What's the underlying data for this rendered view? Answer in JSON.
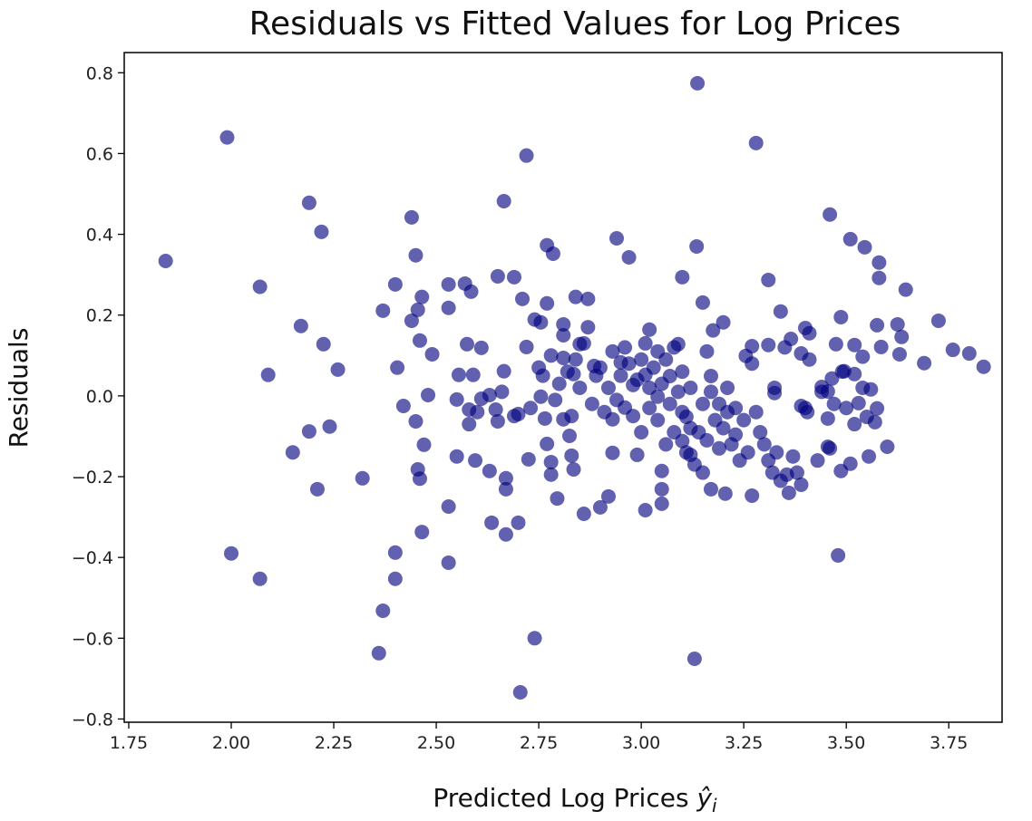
{
  "chart_data": {
    "type": "scatter",
    "title": "Residuals vs Fitted Values for Log Prices",
    "xlabel": "Predicted Log Prices",
    "xlabel_math": "ŷ",
    "xlabel_sub": "i",
    "ylabel": "Residuals",
    "xlim": [
      1.739,
      3.88
    ],
    "ylim": [
      -0.808,
      0.85
    ],
    "x_ticks": [
      1.75,
      2.0,
      2.25,
      2.5,
      2.75,
      3.0,
      3.25,
      3.5,
      3.75
    ],
    "x_tick_labels": [
      "1.75",
      "2.00",
      "2.25",
      "2.50",
      "2.75",
      "3.00",
      "3.25",
      "3.50",
      "3.75"
    ],
    "y_ticks": [
      -0.8,
      -0.6,
      -0.4,
      -0.2,
      0.0,
      0.2,
      0.4,
      0.6,
      0.8
    ],
    "y_tick_labels": [
      "−0.8",
      "−0.6",
      "−0.4",
      "−0.2",
      "0.0",
      "0.2",
      "0.4",
      "0.6",
      "0.8"
    ],
    "grid": false,
    "marker_color": "#000080",
    "marker_alpha": 0.62,
    "points": [
      [
        1.84,
        0.334
      ],
      [
        1.99,
        0.64
      ],
      [
        2.19,
        0.478
      ],
      [
        2.22,
        0.406
      ],
      [
        2.07,
        0.27
      ],
      [
        2.09,
        0.052
      ],
      [
        2.17,
        0.173
      ],
      [
        2.225,
        0.128
      ],
      [
        2.26,
        0.065
      ],
      [
        2.19,
        -0.088
      ],
      [
        2.24,
        -0.076
      ],
      [
        2.15,
        -0.14
      ],
      [
        2.21,
        -0.231
      ],
      [
        2.32,
        -0.204
      ],
      [
        2.0,
        -0.39
      ],
      [
        2.07,
        -0.453
      ],
      [
        2.37,
        -0.532
      ],
      [
        2.36,
        -0.637
      ],
      [
        2.4,
        -0.388
      ],
      [
        2.4,
        -0.453
      ],
      [
        2.37,
        0.211
      ],
      [
        2.4,
        0.276
      ],
      [
        2.44,
        0.442
      ],
      [
        2.45,
        0.348
      ],
      [
        2.405,
        0.07
      ],
      [
        2.42,
        -0.025
      ],
      [
        2.44,
        0.186
      ],
      [
        2.455,
        0.213
      ],
      [
        2.465,
        0.245
      ],
      [
        2.46,
        0.137
      ],
      [
        2.45,
        -0.063
      ],
      [
        2.47,
        -0.121
      ],
      [
        2.455,
        -0.182
      ],
      [
        2.46,
        -0.205
      ],
      [
        2.465,
        -0.337
      ],
      [
        2.48,
        0.002
      ],
      [
        2.49,
        0.103
      ],
      [
        2.53,
        0.276
      ],
      [
        2.53,
        0.218
      ],
      [
        2.53,
        -0.274
      ],
      [
        2.53,
        -0.413
      ],
      [
        2.555,
        0.052
      ],
      [
        2.55,
        -0.009
      ],
      [
        2.55,
        -0.15
      ],
      [
        2.57,
        0.278
      ],
      [
        2.585,
        0.258
      ],
      [
        2.575,
        0.128
      ],
      [
        2.58,
        -0.034
      ],
      [
        2.58,
        -0.07
      ],
      [
        2.595,
        -0.16
      ],
      [
        2.61,
        0.119
      ],
      [
        2.59,
        0.052
      ],
      [
        2.61,
        -0.007
      ],
      [
        2.63,
        0.002
      ],
      [
        2.63,
        -0.186
      ],
      [
        2.635,
        -0.314
      ],
      [
        2.65,
        0.296
      ],
      [
        2.665,
        0.482
      ],
      [
        2.645,
        -0.034
      ],
      [
        2.65,
        -0.063
      ],
      [
        2.665,
        0.061
      ],
      [
        2.67,
        -0.204
      ],
      [
        2.67,
        -0.231
      ],
      [
        2.67,
        -0.343
      ],
      [
        2.69,
        0.294
      ],
      [
        2.7,
        -0.045
      ],
      [
        2.71,
        0.24
      ],
      [
        2.7,
        -0.314
      ],
      [
        2.705,
        -0.734
      ],
      [
        2.72,
        0.595
      ],
      [
        2.72,
        0.121
      ],
      [
        2.725,
        -0.157
      ],
      [
        2.74,
        0.189
      ],
      [
        2.74,
        -0.6
      ],
      [
        2.755,
        0.182
      ],
      [
        2.755,
        -0.002
      ],
      [
        2.765,
        -0.056
      ],
      [
        2.77,
        -0.119
      ],
      [
        2.77,
        0.373
      ],
      [
        2.785,
        0.352
      ],
      [
        2.77,
        0.229
      ],
      [
        2.78,
        -0.164
      ],
      [
        2.78,
        -0.195
      ],
      [
        2.795,
        -0.254
      ],
      [
        2.81,
        0.177
      ],
      [
        2.81,
        0.094
      ],
      [
        2.81,
        -0.058
      ],
      [
        2.825,
        -0.099
      ],
      [
        2.83,
        -0.148
      ],
      [
        2.835,
        -0.182
      ],
      [
        2.84,
        0.245
      ],
      [
        2.835,
        0.054
      ],
      [
        2.85,
        0.128
      ],
      [
        2.86,
        -0.292
      ],
      [
        2.87,
        0.24
      ],
      [
        2.885,
        0.074
      ],
      [
        2.9,
        -0.276
      ],
      [
        2.92,
        -0.249
      ],
      [
        2.93,
        -0.141
      ],
      [
        2.93,
        -0.058
      ],
      [
        2.94,
        0.39
      ],
      [
        2.97,
        0.343
      ],
      [
        2.95,
        0.083
      ],
      [
        2.96,
        -0.029
      ],
      [
        2.98,
        0.027
      ],
      [
        2.99,
        -0.146
      ],
      [
        3.01,
        -0.283
      ],
      [
        3.01,
        0.052
      ],
      [
        3.02,
        0.164
      ],
      [
        3.04,
        -0.002
      ],
      [
        3.05,
        -0.267
      ],
      [
        3.05,
        -0.231
      ],
      [
        3.05,
        -0.186
      ],
      [
        3.07,
        0.049
      ],
      [
        3.09,
        0.128
      ],
      [
        3.1,
        0.294
      ],
      [
        3.1,
        -0.112
      ],
      [
        3.11,
        -0.052
      ],
      [
        3.12,
        -0.146
      ],
      [
        3.135,
        0.37
      ],
      [
        3.137,
        0.774
      ],
      [
        3.13,
        -0.651
      ],
      [
        3.15,
        0.231
      ],
      [
        3.16,
        0.11
      ],
      [
        3.17,
        0.049
      ],
      [
        3.175,
        0.162
      ],
      [
        3.2,
        0.182
      ],
      [
        3.17,
        -0.231
      ],
      [
        3.205,
        -0.242
      ],
      [
        3.23,
        -0.096
      ],
      [
        3.255,
        0.099
      ],
      [
        3.27,
        0.123
      ],
      [
        3.28,
        0.626
      ],
      [
        3.27,
        -0.247
      ],
      [
        3.31,
        0.287
      ],
      [
        3.31,
        0.126
      ],
      [
        3.325,
        0.02
      ],
      [
        3.325,
        0.007
      ],
      [
        3.34,
        0.209
      ],
      [
        3.355,
        -0.195
      ],
      [
        3.365,
        0.141
      ],
      [
        3.39,
        0.105
      ],
      [
        3.39,
        -0.025
      ],
      [
        3.4,
        0.168
      ],
      [
        3.405,
        -0.04
      ],
      [
        3.41,
        0.155
      ],
      [
        3.44,
        0.022
      ],
      [
        3.455,
        0.011
      ],
      [
        3.46,
        0.449
      ],
      [
        3.455,
        -0.056
      ],
      [
        3.455,
        -0.126
      ],
      [
        3.465,
        0.043
      ],
      [
        3.475,
        0.128
      ],
      [
        3.487,
        0.195
      ],
      [
        3.487,
        -0.186
      ],
      [
        3.48,
        -0.395
      ],
      [
        3.495,
        0.061
      ],
      [
        3.51,
        0.388
      ],
      [
        3.52,
        0.054
      ],
      [
        3.52,
        0.126
      ],
      [
        3.53,
        -0.018
      ],
      [
        3.51,
        -0.168
      ],
      [
        3.54,
        0.097
      ],
      [
        3.545,
        0.368
      ],
      [
        3.55,
        -0.052
      ],
      [
        3.555,
        -0.15
      ],
      [
        3.56,
        0.016
      ],
      [
        3.575,
        -0.031
      ],
      [
        3.57,
        -0.065
      ],
      [
        3.575,
        0.175
      ],
      [
        3.58,
        0.33
      ],
      [
        3.58,
        0.292
      ],
      [
        3.585,
        0.121
      ],
      [
        3.6,
        -0.126
      ],
      [
        3.625,
        0.177
      ],
      [
        3.635,
        0.146
      ],
      [
        3.63,
        0.103
      ],
      [
        3.645,
        0.263
      ],
      [
        3.69,
        0.081
      ],
      [
        3.725,
        0.186
      ],
      [
        3.76,
        0.114
      ],
      [
        3.8,
        0.105
      ],
      [
        3.835,
        0.072
      ],
      [
        2.8,
        0.03
      ],
      [
        2.82,
        0.06
      ],
      [
        2.84,
        0.09
      ],
      [
        2.86,
        0.13
      ],
      [
        2.88,
        -0.02
      ],
      [
        2.9,
        0.07
      ],
      [
        2.91,
        -0.04
      ],
      [
        2.92,
        0.02
      ],
      [
        2.93,
        0.11
      ],
      [
        2.94,
        -0.01
      ],
      [
        2.95,
        0.05
      ],
      [
        2.96,
        0.12
      ],
      [
        2.97,
        0.08
      ],
      [
        2.98,
        -0.05
      ],
      [
        2.99,
        0.04
      ],
      [
        3.0,
        0.09
      ],
      [
        3.0,
        -0.09
      ],
      [
        3.01,
        0.13
      ],
      [
        3.02,
        0.02
      ],
      [
        3.02,
        -0.03
      ],
      [
        3.03,
        0.07
      ],
      [
        3.04,
        0.11
      ],
      [
        3.04,
        -0.06
      ],
      [
        3.05,
        0.03
      ],
      [
        3.06,
        -0.12
      ],
      [
        3.06,
        0.09
      ],
      [
        3.07,
        -0.02
      ],
      [
        3.08,
        0.12
      ],
      [
        3.08,
        -0.09
      ],
      [
        3.09,
        0.01
      ],
      [
        3.1,
        -0.04
      ],
      [
        3.1,
        0.06
      ],
      [
        3.11,
        -0.14
      ],
      [
        3.12,
        -0.08
      ],
      [
        3.12,
        0.02
      ],
      [
        3.13,
        -0.17
      ],
      [
        3.14,
        -0.09
      ],
      [
        3.15,
        -0.02
      ],
      [
        3.15,
        -0.19
      ],
      [
        3.16,
        -0.11
      ],
      [
        3.17,
        0.01
      ],
      [
        3.18,
        -0.06
      ],
      [
        3.19,
        -0.13
      ],
      [
        3.19,
        -0.02
      ],
      [
        3.2,
        -0.08
      ],
      [
        3.21,
        -0.04
      ],
      [
        3.21,
        0.02
      ],
      [
        3.22,
        -0.12
      ],
      [
        3.23,
        -0.03
      ],
      [
        3.24,
        -0.16
      ],
      [
        3.25,
        -0.06
      ],
      [
        3.26,
        -0.14
      ],
      [
        3.27,
        0.08
      ],
      [
        3.28,
        -0.04
      ],
      [
        3.29,
        -0.09
      ],
      [
        3.3,
        -0.12
      ],
      [
        3.31,
        -0.16
      ],
      [
        3.32,
        -0.19
      ],
      [
        3.33,
        -0.14
      ],
      [
        3.34,
        -0.21
      ],
      [
        3.35,
        0.12
      ],
      [
        3.36,
        -0.24
      ],
      [
        3.37,
        -0.15
      ],
      [
        3.38,
        -0.19
      ],
      [
        3.39,
        -0.22
      ],
      [
        3.4,
        -0.03
      ],
      [
        3.41,
        0.09
      ],
      [
        3.43,
        -0.16
      ],
      [
        3.44,
        0.01
      ],
      [
        3.46,
        -0.13
      ],
      [
        3.47,
        -0.02
      ],
      [
        3.49,
        0.06
      ],
      [
        3.5,
        -0.03
      ],
      [
        3.52,
        -0.07
      ],
      [
        3.54,
        0.02
      ],
      [
        2.76,
        0.05
      ],
      [
        2.78,
        0.1
      ],
      [
        2.79,
        -0.01
      ],
      [
        2.81,
        0.15
      ],
      [
        2.83,
        -0.05
      ],
      [
        2.85,
        0.02
      ],
      [
        2.87,
        0.17
      ],
      [
        2.89,
        0.05
      ],
      [
        2.6,
        -0.04
      ],
      [
        2.66,
        0.01
      ],
      [
        2.69,
        -0.05
      ],
      [
        2.73,
        -0.03
      ],
      [
        2.75,
        0.07
      ]
    ]
  }
}
